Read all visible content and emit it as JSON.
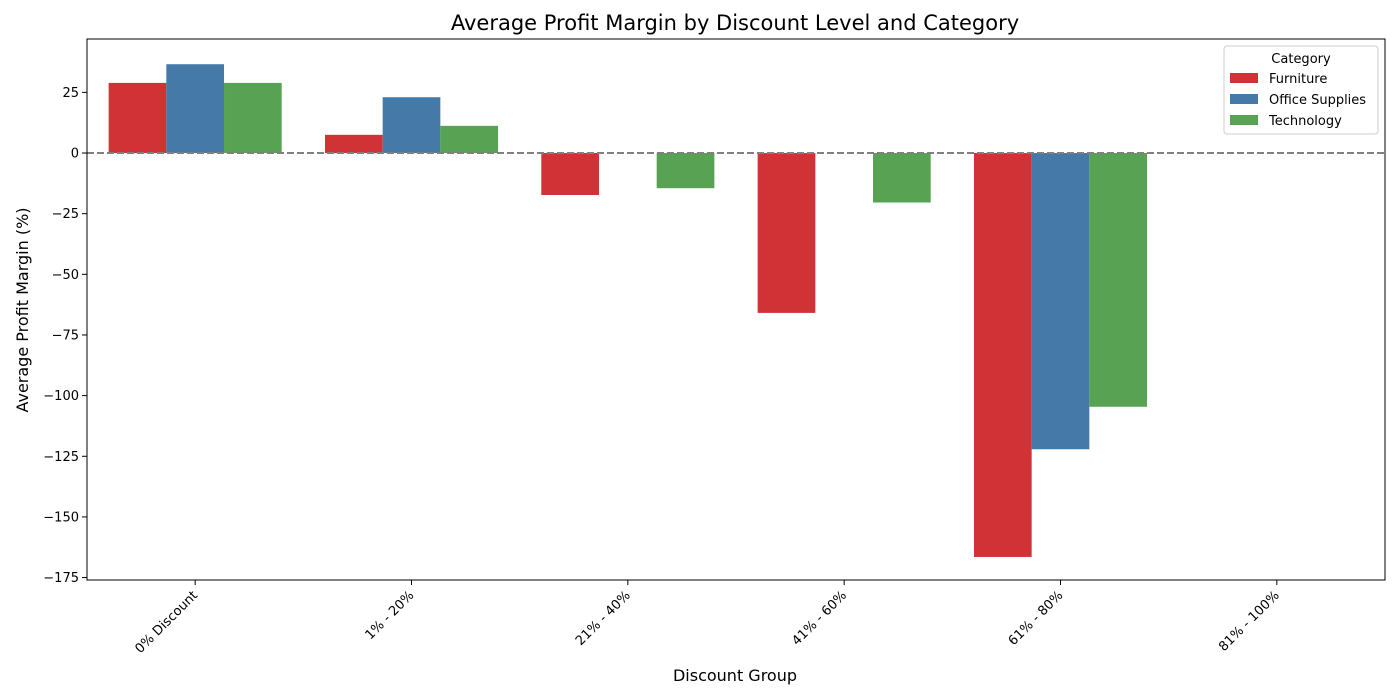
{
  "chart_data": {
    "type": "bar",
    "title": "Average Profit Margin by Discount Level and Category",
    "xlabel": "Discount Group",
    "ylabel": "Average Profit Margin (%)",
    "categories": [
      "0% Discount",
      "1% - 20%",
      "21% - 40%",
      "41% - 60%",
      "61% - 80%",
      "81% - 100%"
    ],
    "series": [
      {
        "name": "Furniture",
        "color": "#d03236",
        "values": [
          28.9,
          7.5,
          -17.3,
          -65.9,
          -166.5,
          null
        ]
      },
      {
        "name": "Office Supplies",
        "color": "#4579a8",
        "values": [
          36.6,
          23.0,
          null,
          null,
          -122.1,
          null
        ]
      },
      {
        "name": "Technology",
        "color": "#58a253",
        "values": [
          28.9,
          11.2,
          -14.5,
          -20.4,
          -104.6,
          null
        ]
      }
    ],
    "ylim": [
      -176,
      47
    ],
    "yticks": [
      25,
      0,
      -25,
      -50,
      -75,
      -100,
      -125,
      -150,
      -175
    ],
    "reference_line": {
      "y": 0,
      "style": "dashed",
      "color": "#808080"
    },
    "legend": {
      "title": "Category",
      "placement": "top-right"
    },
    "grid": false
  }
}
